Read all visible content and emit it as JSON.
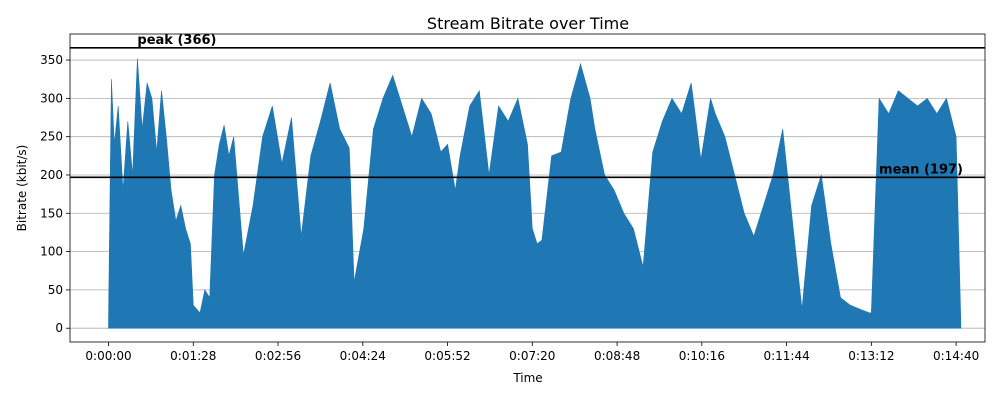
{
  "chart_data": {
    "type": "area",
    "title": "Stream Bitrate over Time",
    "xlabel": "Time",
    "ylabel": "Bitrate (kbit/s)",
    "x_unit": "seconds",
    "xlim": [
      -40,
      910
    ],
    "ylim": [
      -18,
      384
    ],
    "x_ticks": [
      {
        "value": 0,
        "label": "0:00:00"
      },
      {
        "value": 88,
        "label": "0:01:28"
      },
      {
        "value": 176,
        "label": "0:02:56"
      },
      {
        "value": 264,
        "label": "0:04:24"
      },
      {
        "value": 352,
        "label": "0:05:52"
      },
      {
        "value": 440,
        "label": "0:07:20"
      },
      {
        "value": 528,
        "label": "0:08:48"
      },
      {
        "value": 616,
        "label": "0:10:16"
      },
      {
        "value": 704,
        "label": "0:11:44"
      },
      {
        "value": 792,
        "label": "0:13:12"
      },
      {
        "value": 880,
        "label": "0:14:40"
      }
    ],
    "y_ticks": [
      0,
      50,
      100,
      150,
      200,
      250,
      300,
      350
    ],
    "grid": "y",
    "series": [
      {
        "color": "#1f77b4",
        "x": [
          0,
          3,
          6,
          10,
          15,
          20,
          25,
          30,
          35,
          40,
          45,
          50,
          55,
          60,
          65,
          70,
          75,
          80,
          85,
          88,
          95,
          100,
          105,
          110,
          115,
          120,
          125,
          130,
          140,
          150,
          160,
          170,
          180,
          190,
          200,
          210,
          220,
          230,
          240,
          250,
          255,
          265,
          275,
          285,
          295,
          305,
          315,
          325,
          335,
          345,
          352,
          360,
          365,
          375,
          385,
          395,
          405,
          415,
          425,
          435,
          440,
          445,
          450,
          460,
          470,
          480,
          490,
          500,
          505,
          515,
          525,
          535,
          545,
          555,
          565,
          575,
          585,
          595,
          605,
          610,
          615,
          625,
          630,
          640,
          650,
          660,
          670,
          680,
          690,
          700,
          710,
          720,
          730,
          740,
          750,
          760,
          770,
          780,
          790,
          792,
          800,
          810,
          820,
          830,
          840,
          850,
          860,
          870,
          880,
          885
        ],
        "y": [
          10,
          325,
          240,
          290,
          180,
          270,
          200,
          352,
          260,
          320,
          300,
          230,
          310,
          250,
          180,
          140,
          160,
          130,
          110,
          30,
          20,
          50,
          40,
          200,
          240,
          265,
          225,
          250,
          95,
          160,
          250,
          290,
          215,
          275,
          120,
          225,
          270,
          320,
          260,
          235,
          60,
          130,
          260,
          300,
          330,
          290,
          250,
          300,
          280,
          230,
          240,
          180,
          225,
          290,
          310,
          200,
          290,
          270,
          300,
          240,
          130,
          110,
          115,
          225,
          230,
          300,
          345,
          300,
          260,
          200,
          180,
          150,
          130,
          80,
          230,
          270,
          300,
          280,
          320,
          270,
          220,
          300,
          280,
          250,
          200,
          150,
          120,
          160,
          200,
          260,
          140,
          25,
          160,
          200,
          110,
          40,
          30,
          25,
          20,
          20,
          300,
          280,
          310,
          300,
          290,
          300,
          280,
          300,
          250,
          5
        ]
      }
    ],
    "reference_lines": [
      {
        "label": "peak (366)",
        "value": 366,
        "label_x": 30
      },
      {
        "label": "mean (197)",
        "value": 197,
        "label_x": 800
      }
    ]
  }
}
